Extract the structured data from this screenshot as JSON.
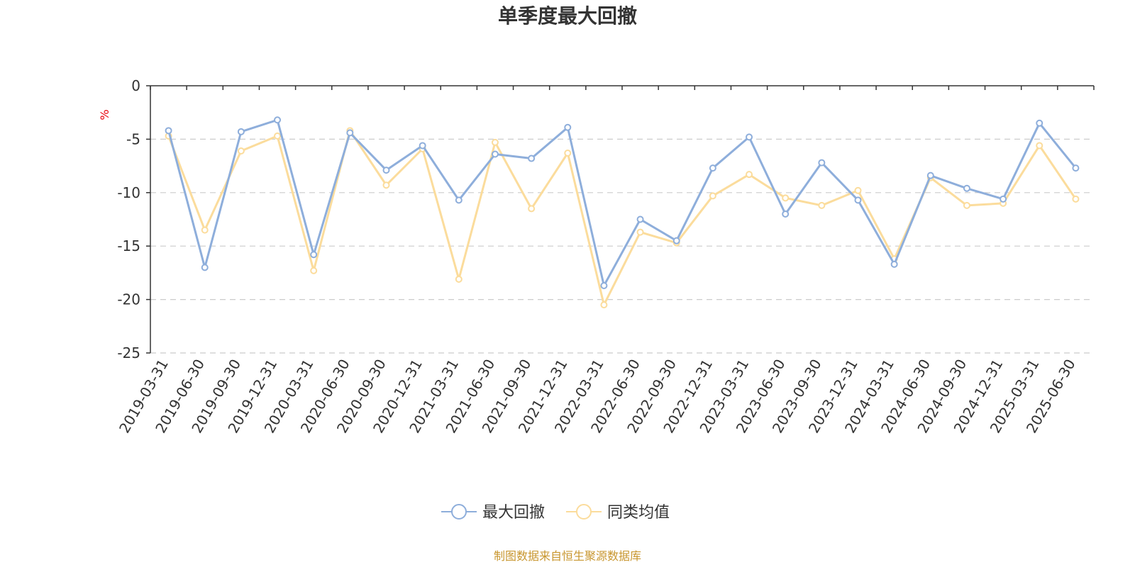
{
  "chart_data": {
    "type": "line",
    "title": "单季度最大回撤",
    "ylabel": "%",
    "ylim": [
      -25,
      0
    ],
    "yticks": [
      0,
      -5,
      -10,
      -15,
      -20,
      -25
    ],
    "grid": true,
    "legend_position": "bottom-center",
    "categories": [
      "2019-03-31",
      "2019-06-30",
      "2019-09-30",
      "2019-12-31",
      "2020-03-31",
      "2020-06-30",
      "2020-09-30",
      "2020-12-31",
      "2021-03-31",
      "2021-06-30",
      "2021-09-30",
      "2021-12-31",
      "2022-03-31",
      "2022-06-30",
      "2022-09-30",
      "2022-12-31",
      "2023-03-31",
      "2023-06-30",
      "2023-09-30",
      "2023-12-31",
      "2024-03-31",
      "2024-06-30",
      "2024-09-30",
      "2024-12-31",
      "2025-03-31",
      "2025-06-30"
    ],
    "series": [
      {
        "name": "最大回撤",
        "color": "#8eaedb",
        "values": [
          -4.2,
          -17.0,
          -4.3,
          -3.2,
          -15.8,
          -4.4,
          -7.9,
          -5.6,
          -10.7,
          -6.4,
          -6.8,
          -3.9,
          -18.7,
          -12.5,
          -14.5,
          -7.7,
          -4.8,
          -12.0,
          -7.2,
          -10.7,
          -16.7,
          -8.4,
          -9.6,
          -10.6,
          -3.5,
          -7.7
        ]
      },
      {
        "name": "同类均值",
        "color": "#fbdc9c",
        "values": [
          -4.7,
          -13.5,
          -6.1,
          -4.7,
          -17.3,
          -4.2,
          -9.3,
          -5.9,
          -18.1,
          -5.3,
          -11.5,
          -6.3,
          -20.5,
          -13.7,
          -14.7,
          -10.3,
          -8.3,
          -10.5,
          -11.2,
          -9.8,
          -16.2,
          -8.6,
          -11.2,
          -11.0,
          -5.6,
          -10.6
        ]
      }
    ]
  },
  "footer": {
    "source": "制图数据来自恒生聚源数据库"
  },
  "colors": {
    "axis": "#333333",
    "grid": "#cccccc",
    "unit": "#e8000b",
    "source": "#c8962e"
  }
}
